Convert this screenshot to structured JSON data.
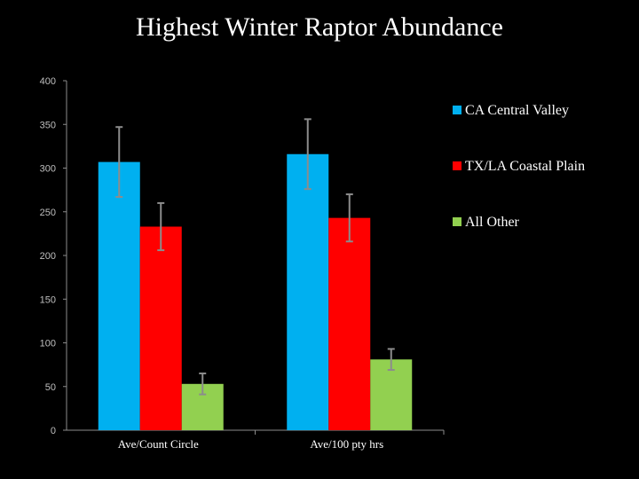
{
  "chart_data": {
    "type": "bar",
    "title": "Highest Winter Raptor Abundance",
    "categories": [
      "Ave/Count Circle",
      "Ave/100 pty hrs"
    ],
    "series": [
      {
        "name": "CA Central Valley",
        "color": "#00b0f0",
        "values": [
          307,
          316
        ],
        "error": [
          40,
          40
        ]
      },
      {
        "name": "TX/LA Coastal Plain",
        "color": "#ff0000",
        "values": [
          233,
          243
        ],
        "error": [
          27,
          27
        ]
      },
      {
        "name": "All Other",
        "color": "#92d050",
        "values": [
          53,
          81
        ],
        "error": [
          12,
          12
        ]
      }
    ],
    "ylim": [
      0,
      400
    ],
    "yticks": [
      0,
      50,
      100,
      150,
      200,
      250,
      300,
      350,
      400
    ],
    "xlabel": "",
    "ylabel": "",
    "legend_position": "right"
  }
}
